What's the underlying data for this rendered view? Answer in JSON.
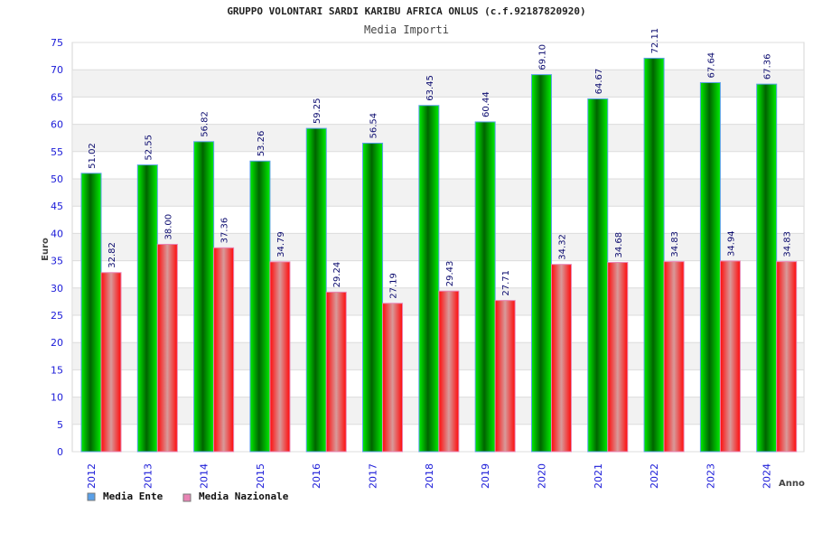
{
  "chart_data": {
    "type": "bar",
    "title": "GRUPPO VOLONTARI SARDI KARIBU AFRICA ONLUS (c.f.92187820920)",
    "subtitle": "Media Importi",
    "xlabel": "Anno",
    "ylabel": "Euro",
    "ylim": [
      0,
      75
    ],
    "yticks": [
      0,
      5,
      10,
      15,
      20,
      25,
      30,
      35,
      40,
      45,
      50,
      55,
      60,
      65,
      70,
      75
    ],
    "grid": true,
    "legend_position": "bottom-left",
    "categories": [
      "2012",
      "2013",
      "2014",
      "2015",
      "2016",
      "2017",
      "2018",
      "2019",
      "2020",
      "2021",
      "2022",
      "2023",
      "2024"
    ],
    "series": [
      {
        "name": "Media Ente",
        "legend_color": "#5aa0e8",
        "color": "#00cc00",
        "values": [
          51.02,
          52.55,
          56.82,
          53.26,
          59.25,
          56.54,
          63.45,
          60.44,
          69.1,
          64.67,
          72.11,
          67.64,
          67.36
        ],
        "labels": [
          "51.02",
          "52.55",
          "56.82",
          "53.26",
          "59.25",
          "56.54",
          "63.45",
          "60.44",
          "69.10",
          "64.67",
          "72.11",
          "67.64",
          "67.36"
        ]
      },
      {
        "name": "Media Nazionale",
        "legend_color": "#e884b4",
        "color": "#ff1a1a",
        "values": [
          32.82,
          38.0,
          37.36,
          34.79,
          29.24,
          27.19,
          29.43,
          27.71,
          34.32,
          34.68,
          34.83,
          34.94,
          34.83
        ],
        "labels": [
          "32.82",
          "38.00",
          "37.36",
          "34.79",
          "29.24",
          "27.19",
          "29.43",
          "27.71",
          "34.32",
          "34.68",
          "34.83",
          "34.94",
          "34.83"
        ]
      }
    ]
  }
}
